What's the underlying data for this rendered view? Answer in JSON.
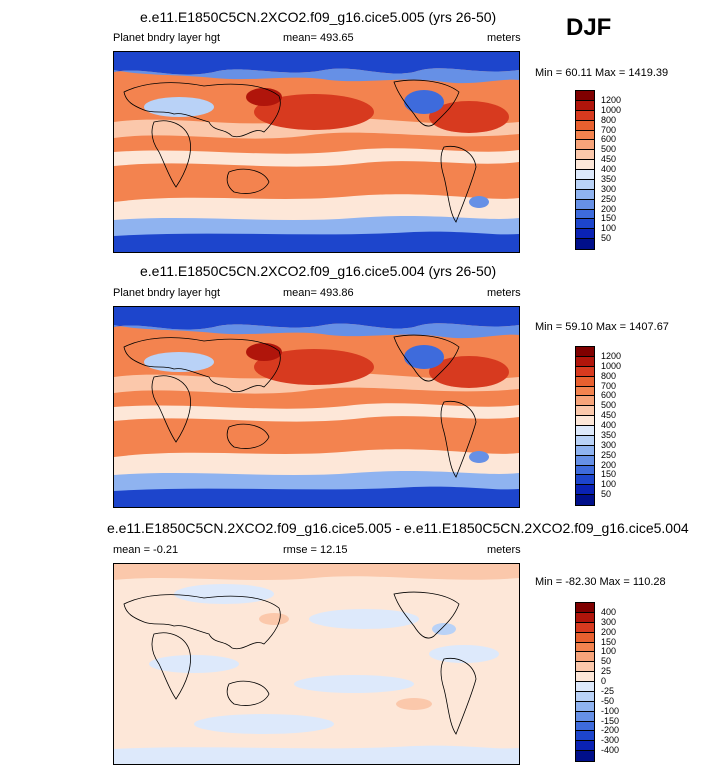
{
  "season": "DJF",
  "panels": [
    {
      "id": "panel1",
      "title": "e.e11.E1850C5CN.2XCO2.f09_g16.cice5.005 (yrs 26-50)",
      "left_label": "Planet bndry layer hgt",
      "center_label": "mean= 493.65",
      "units": "meters",
      "minmax": "Min =  60.11 Max = 1419.39",
      "palette": "abs",
      "levels": [
        "1200",
        "1000",
        "800",
        "700",
        "600",
        "500",
        "450",
        "400",
        "350",
        "300",
        "250",
        "200",
        "150",
        "100",
        "50"
      ]
    },
    {
      "id": "panel2",
      "title": "e.e11.E1850C5CN.2XCO2.f09_g16.cice5.004 (yrs 26-50)",
      "left_label": "Planet bndry layer hgt",
      "center_label": "mean= 493.86",
      "units": "meters",
      "minmax": "Min =  59.10 Max = 1407.67",
      "palette": "abs",
      "levels": [
        "1200",
        "1000",
        "800",
        "700",
        "600",
        "500",
        "450",
        "400",
        "350",
        "300",
        "250",
        "200",
        "150",
        "100",
        "50"
      ]
    },
    {
      "id": "panel3",
      "title": "e.e11.E1850C5CN.2XCO2.f09_g16.cice5.005 - e.e11.E1850C5CN.2XCO2.f09_g16.cice5.004",
      "left_label": "mean =  -0.21",
      "center_label": "rmse =  12.15",
      "units": "meters",
      "minmax": "Min = -82.30 Max = 110.28",
      "palette": "diff",
      "levels": [
        "400",
        "300",
        "200",
        "150",
        "100",
        "50",
        "25",
        "0",
        "-25",
        "-50",
        "-100",
        "-150",
        "-200",
        "-300",
        "-400"
      ]
    }
  ],
  "colors": {
    "abs": [
      "#7f0000",
      "#b0150b",
      "#d73a1f",
      "#e8602f",
      "#f3834f",
      "#f7a47a",
      "#fbc8ab",
      "#fde7d8",
      "#dde9fb",
      "#b9d2f7",
      "#8fb3f0",
      "#6690e6",
      "#3e6bdc",
      "#1d45cc",
      "#0a22b4",
      "#000f8a"
    ],
    "diff": [
      "#7f0000",
      "#b0150b",
      "#d73a1f",
      "#e8602f",
      "#f3834f",
      "#f7a47a",
      "#fbc8ab",
      "#fde7d8",
      "#dde9fb",
      "#b9d2f7",
      "#8fb3f0",
      "#6690e6",
      "#3e6bdc",
      "#1d45cc",
      "#0a22b4",
      "#000f8a"
    ]
  }
}
